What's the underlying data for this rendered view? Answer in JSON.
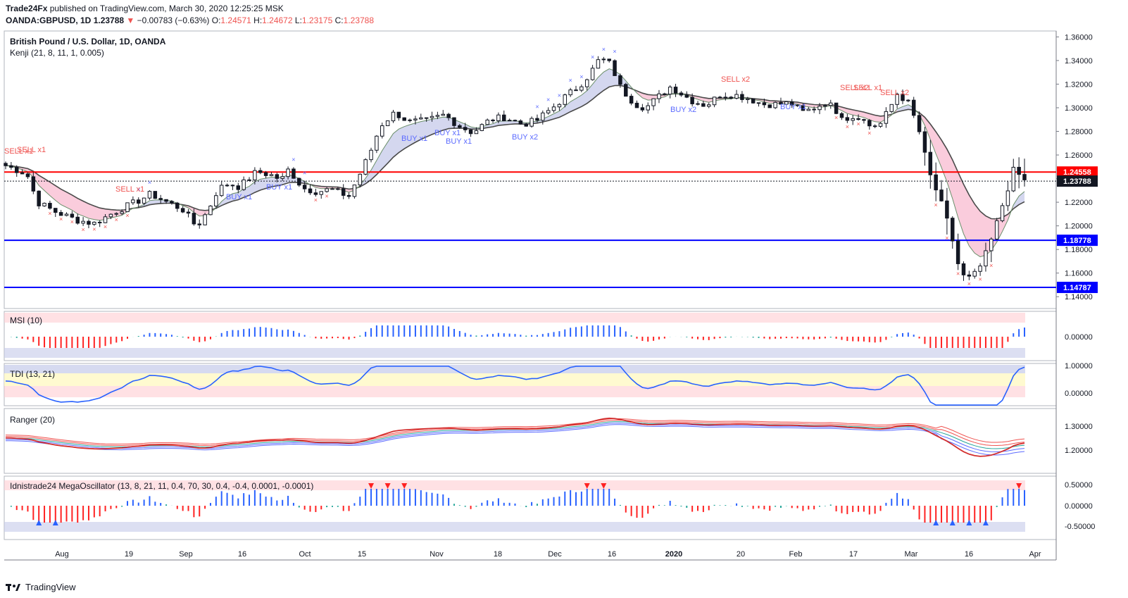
{
  "header": {
    "publisher": "Trade24Fx",
    "published_text": "published on TradingView.com, March 30, 2020 12:25:25 MSK",
    "symbol": "OANDA:GBPUSD, 1D",
    "last": "1.23788",
    "change_arrow": "▼",
    "change": "−0.00783 (−0.63%)",
    "o_label": "O:",
    "o_value": "1.24571",
    "h_label": "H:",
    "h_value": "1.24672",
    "l_label": "L:",
    "l_value": "1.23175",
    "c_label": "C:",
    "c_value": "1.23788"
  },
  "footer": {
    "brand": "TradingView"
  },
  "colors": {
    "up": "#26a69a",
    "down": "#ef5350",
    "blue": "#2962ff",
    "red": "#ff0000",
    "grid": "#e6e6e6"
  },
  "chart_data": [
    {
      "type": "candlestick",
      "title": "British Pound / U.S. Dollar, 1D, OANDA",
      "indicator_label": "Kenji (21, 8, 11, 1, 0.005)",
      "ylim": [
        1.13,
        1.365
      ],
      "y_ticks": [
        "1.36000",
        "1.34000",
        "1.32000",
        "1.30000",
        "1.28000",
        "1.26000",
        "1.24000",
        "1.22000",
        "1.20000",
        "1.18000",
        "1.16000",
        "1.14000"
      ],
      "x_ticks": [
        "Aug",
        "19",
        "Sep",
        "16",
        "Oct",
        "15",
        "Nov",
        "18",
        "Dec",
        "16",
        "2020",
        "20",
        "Feb",
        "17",
        "Mar",
        "16",
        "Apr"
      ],
      "horizontal_lines": [
        {
          "value": 1.24558,
          "label": "1.24558",
          "color": "#ff0000"
        },
        {
          "value": 1.18778,
          "label": "1.18778",
          "color": "#0000ff"
        },
        {
          "value": 1.14787,
          "label": "1.14787",
          "color": "#0000ff"
        }
      ],
      "last_price": {
        "value": 1.23788,
        "label": "1.23788"
      },
      "signals": [
        "SELL x1",
        "SELL x1",
        "SELL x1",
        "BUY x1",
        "BUY x1",
        "BUY x1",
        "BUY x1",
        "BUY x1",
        "BUY x2",
        "BUY x2",
        "SELL x2",
        "SELL x2",
        "SELL x1",
        "SELL x2",
        "BUY x1"
      ]
    },
    {
      "type": "bar",
      "title": "MSI (10)",
      "y_ticks": [
        "0.00000"
      ]
    },
    {
      "type": "line",
      "title": "TDI (13, 21)",
      "y_ticks": [
        "1.00000",
        "0.00000"
      ]
    },
    {
      "type": "line",
      "title": "Ranger (20)",
      "y_ticks": [
        "1.30000",
        "1.20000"
      ]
    },
    {
      "type": "bar",
      "title": "Idnistrade24 MegaOscillator (13, 8, 21, 11, 0.4, 70, 30, 0.4, -0.4, 0.0001, -0.0001)",
      "y_ticks": [
        "0.50000",
        "0.00000",
        "-0.50000"
      ]
    }
  ]
}
